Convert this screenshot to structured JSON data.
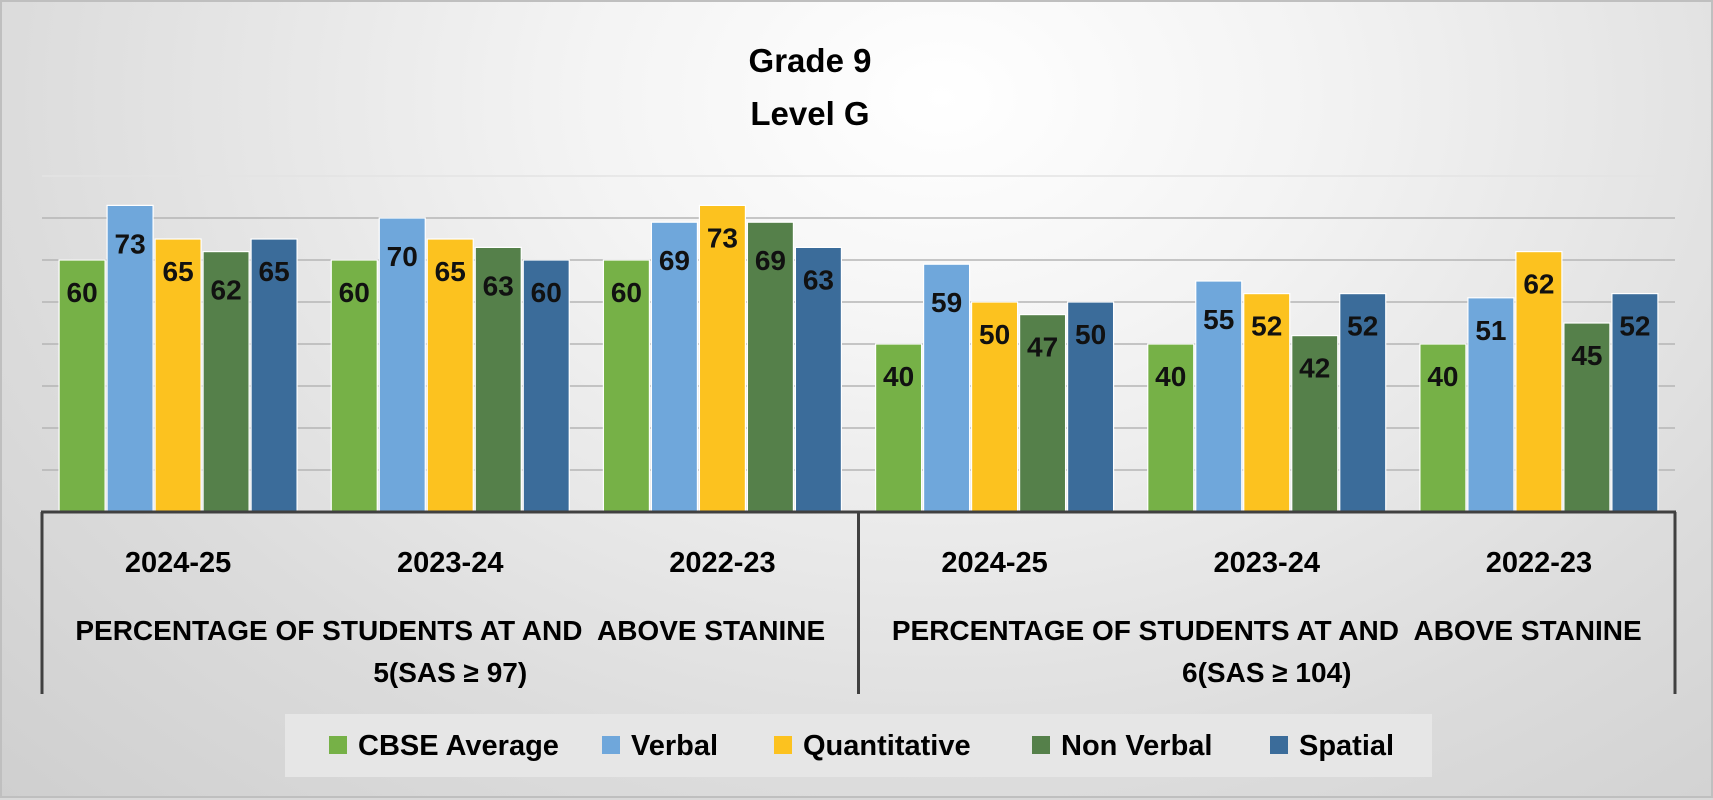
{
  "chart_data": {
    "type": "bar",
    "title": [
      "Grade 9",
      "Level G"
    ],
    "xlabel": "",
    "ylabel": "",
    "ylim": [
      0,
      80
    ],
    "grid": true,
    "legend_position": "bottom",
    "categories": [
      "2024-25",
      "2023-24",
      "2022-23",
      "2024-25",
      "2023-24",
      "2022-23"
    ],
    "groups": [
      {
        "lines": [
          "PERCENTAGE OF STUDENTS AT AND  ABOVE STANINE",
          "5(SAS ≥ 97)"
        ],
        "span": [
          0,
          2
        ]
      },
      {
        "lines": [
          "PERCENTAGE OF STUDENTS AT AND  ABOVE STANINE",
          "6(SAS ≥ 104)"
        ],
        "span": [
          3,
          5
        ]
      }
    ],
    "series": [
      {
        "name": "CBSE Average",
        "color": "#76b147",
        "values": [
          60,
          60,
          60,
          40,
          40,
          40
        ]
      },
      {
        "name": "Verbal",
        "color": "#6fa7db",
        "values": [
          73,
          70,
          69,
          59,
          55,
          51
        ]
      },
      {
        "name": "Quantitative",
        "color": "#fcc21f",
        "values": [
          65,
          65,
          73,
          50,
          52,
          62
        ]
      },
      {
        "name": "Non Verbal",
        "color": "#55804a",
        "values": [
          62,
          63,
          69,
          47,
          42,
          45
        ]
      },
      {
        "name": "Spatial",
        "color": "#3b6c9a",
        "values": [
          65,
          60,
          63,
          50,
          52,
          52
        ]
      }
    ]
  }
}
